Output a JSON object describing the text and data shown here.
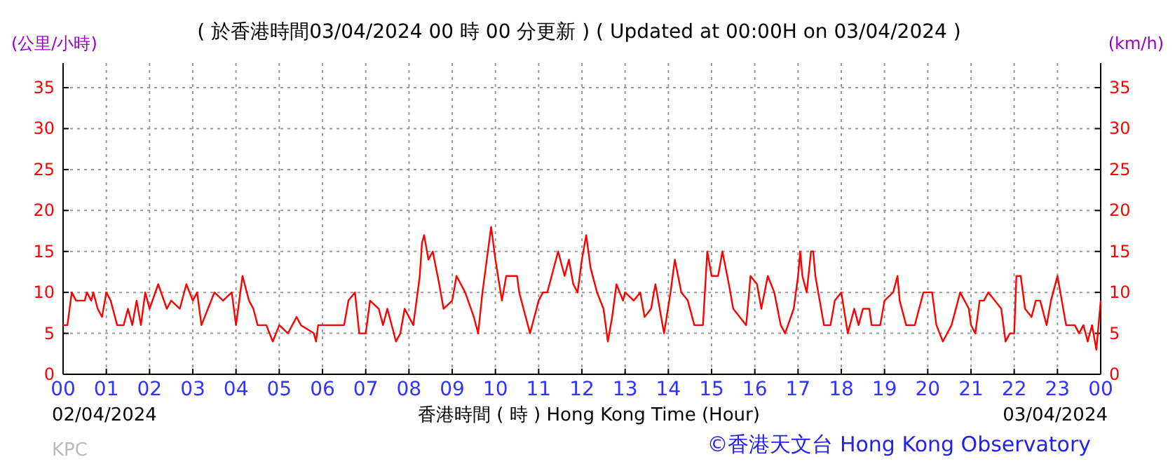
{
  "chart_data": {
    "type": "line",
    "title": "( 於香港時間03/04/2024 00 時 00 分更新 ) ( Updated at 00:00H on 03/04/2024 )",
    "ylabel": "(公里/小時)",
    "y2label": "(km/h)",
    "xlabel": "香港時間 ( 時 ) Hong Kong Time (Hour)",
    "annotations": [
      "02/04/2024",
      "03/04/2024",
      "KPC",
      "©香港天文台 Hong Kong Observatory"
    ],
    "xlim": [
      0,
      24
    ],
    "xticks": [
      {
        "value": 0,
        "label": "00"
      },
      {
        "value": 1,
        "label": "01"
      },
      {
        "value": 2,
        "label": "02"
      },
      {
        "value": 3,
        "label": "03"
      },
      {
        "value": 4,
        "label": "04"
      },
      {
        "value": 5,
        "label": "05"
      },
      {
        "value": 6,
        "label": "06"
      },
      {
        "value": 7,
        "label": "07"
      },
      {
        "value": 8,
        "label": "08"
      },
      {
        "value": 9,
        "label": "09"
      },
      {
        "value": 10,
        "label": "10"
      },
      {
        "value": 11,
        "label": "11"
      },
      {
        "value": 12,
        "label": "12"
      },
      {
        "value": 13,
        "label": "13"
      },
      {
        "value": 14,
        "label": "14"
      },
      {
        "value": 15,
        "label": "15"
      },
      {
        "value": 16,
        "label": "16"
      },
      {
        "value": 17,
        "label": "17"
      },
      {
        "value": 18,
        "label": "18"
      },
      {
        "value": 19,
        "label": "19"
      },
      {
        "value": 20,
        "label": "20"
      },
      {
        "value": 21,
        "label": "21"
      },
      {
        "value": 22,
        "label": "22"
      },
      {
        "value": 23,
        "label": "23"
      },
      {
        "value": 24,
        "label": "00"
      }
    ],
    "ylim": [
      0,
      38
    ],
    "yticks": [
      0,
      5,
      10,
      15,
      20,
      25,
      30,
      35
    ],
    "y2lim": [
      0,
      38
    ],
    "y2ticks": [
      0,
      5,
      10,
      15,
      20,
      25,
      30,
      35
    ],
    "grid": true,
    "series": [
      {
        "color": "#ff0000",
        "x": [
          0,
          0.1,
          0.2,
          0.3,
          0.5,
          0.55,
          0.65,
          0.7,
          0.8,
          0.9,
          1.0,
          1.1,
          1.25,
          1.4,
          1.5,
          1.6,
          1.7,
          1.8,
          1.9,
          2.0,
          2.2,
          2.4,
          2.5,
          2.7,
          2.85,
          3.0,
          3.1,
          3.2,
          3.35,
          3.5,
          3.7,
          3.9,
          4.0,
          4.15,
          4.3,
          4.4,
          4.5,
          4.7,
          4.85,
          5.0,
          5.2,
          5.4,
          5.5,
          5.8,
          5.85,
          5.9,
          6.3,
          6.5,
          6.6,
          6.75,
          6.85,
          7.0,
          7.1,
          7.3,
          7.4,
          7.5,
          7.7,
          7.8,
          7.9,
          8.1,
          8.25,
          8.3,
          8.35,
          8.45,
          8.55,
          8.7,
          8.8,
          9.0,
          9.1,
          9.3,
          9.5,
          9.6,
          9.7,
          9.8,
          9.9,
          10.0,
          10.15,
          10.25,
          10.5,
          10.55,
          10.7,
          10.8,
          11.0,
          11.1,
          11.2,
          11.3,
          11.45,
          11.6,
          11.7,
          11.8,
          11.9,
          12.0,
          12.1,
          12.2,
          12.35,
          12.5,
          12.6,
          12.7,
          12.8,
          12.95,
          13.0,
          13.2,
          13.35,
          13.45,
          13.6,
          13.7,
          13.8,
          13.9,
          14.05,
          14.15,
          14.3,
          14.45,
          14.6,
          14.8,
          14.9,
          15.0,
          15.15,
          15.25,
          15.4,
          15.5,
          15.8,
          15.9,
          16.05,
          16.15,
          16.3,
          16.45,
          16.6,
          16.7,
          16.9,
          17.0,
          17.05,
          17.1,
          17.2,
          17.3,
          17.35,
          17.4,
          17.6,
          17.75,
          17.85,
          18.0,
          18.15,
          18.3,
          18.4,
          18.5,
          18.65,
          18.7,
          18.9,
          19.0,
          19.2,
          19.3,
          19.35,
          19.5,
          19.7,
          19.8,
          19.9,
          20.1,
          20.2,
          20.35,
          20.55,
          20.75,
          20.95,
          21.0,
          21.1,
          21.2,
          21.3,
          21.4,
          21.55,
          21.7,
          21.8,
          21.9,
          22.0,
          22.05,
          22.15,
          22.25,
          22.4,
          22.5,
          22.6,
          22.75,
          22.85,
          23.0,
          23.1,
          23.2,
          23.4,
          23.5,
          23.6,
          23.7,
          23.8,
          23.9,
          24.0
        ],
        "values": [
          6,
          6,
          10,
          9,
          9,
          10,
          9,
          10,
          8,
          7,
          10,
          9,
          6,
          6,
          8,
          6,
          9,
          6,
          10,
          8,
          11,
          8,
          9,
          8,
          11,
          9,
          10,
          6,
          8,
          10,
          9,
          10,
          6,
          12,
          9,
          8,
          6,
          6,
          4,
          6,
          5,
          7,
          6,
          5,
          4,
          6,
          6,
          6,
          9,
          10,
          5,
          5,
          9,
          8,
          6,
          8,
          4,
          5,
          8,
          6,
          12,
          16,
          17,
          14,
          15,
          11,
          8,
          9,
          12,
          10,
          7,
          5,
          10,
          14,
          18,
          14,
          9,
          12,
          12,
          10,
          7,
          5,
          9,
          10,
          10,
          12,
          15,
          12,
          14,
          11,
          10,
          14,
          17,
          13,
          10,
          8,
          4,
          7,
          11,
          9,
          10,
          9,
          10,
          7,
          8,
          11,
          8,
          5,
          10,
          14,
          10,
          9,
          6,
          6,
          15,
          12,
          12,
          15,
          11,
          8,
          6,
          12,
          11,
          8,
          12,
          10,
          6,
          5,
          8,
          12,
          15,
          12,
          10,
          15,
          15,
          12,
          6,
          6,
          9,
          10,
          5,
          8,
          6,
          8,
          8,
          6,
          6,
          9,
          10,
          12,
          9,
          6,
          6,
          8,
          10,
          10,
          6,
          4,
          6,
          10,
          8,
          6,
          5,
          9,
          9,
          10,
          9,
          8,
          4,
          5,
          5,
          12,
          12,
          8,
          7,
          9,
          9,
          6,
          9,
          12,
          9,
          6,
          6,
          5,
          6,
          4,
          6,
          3,
          9
        ]
      }
    ]
  }
}
